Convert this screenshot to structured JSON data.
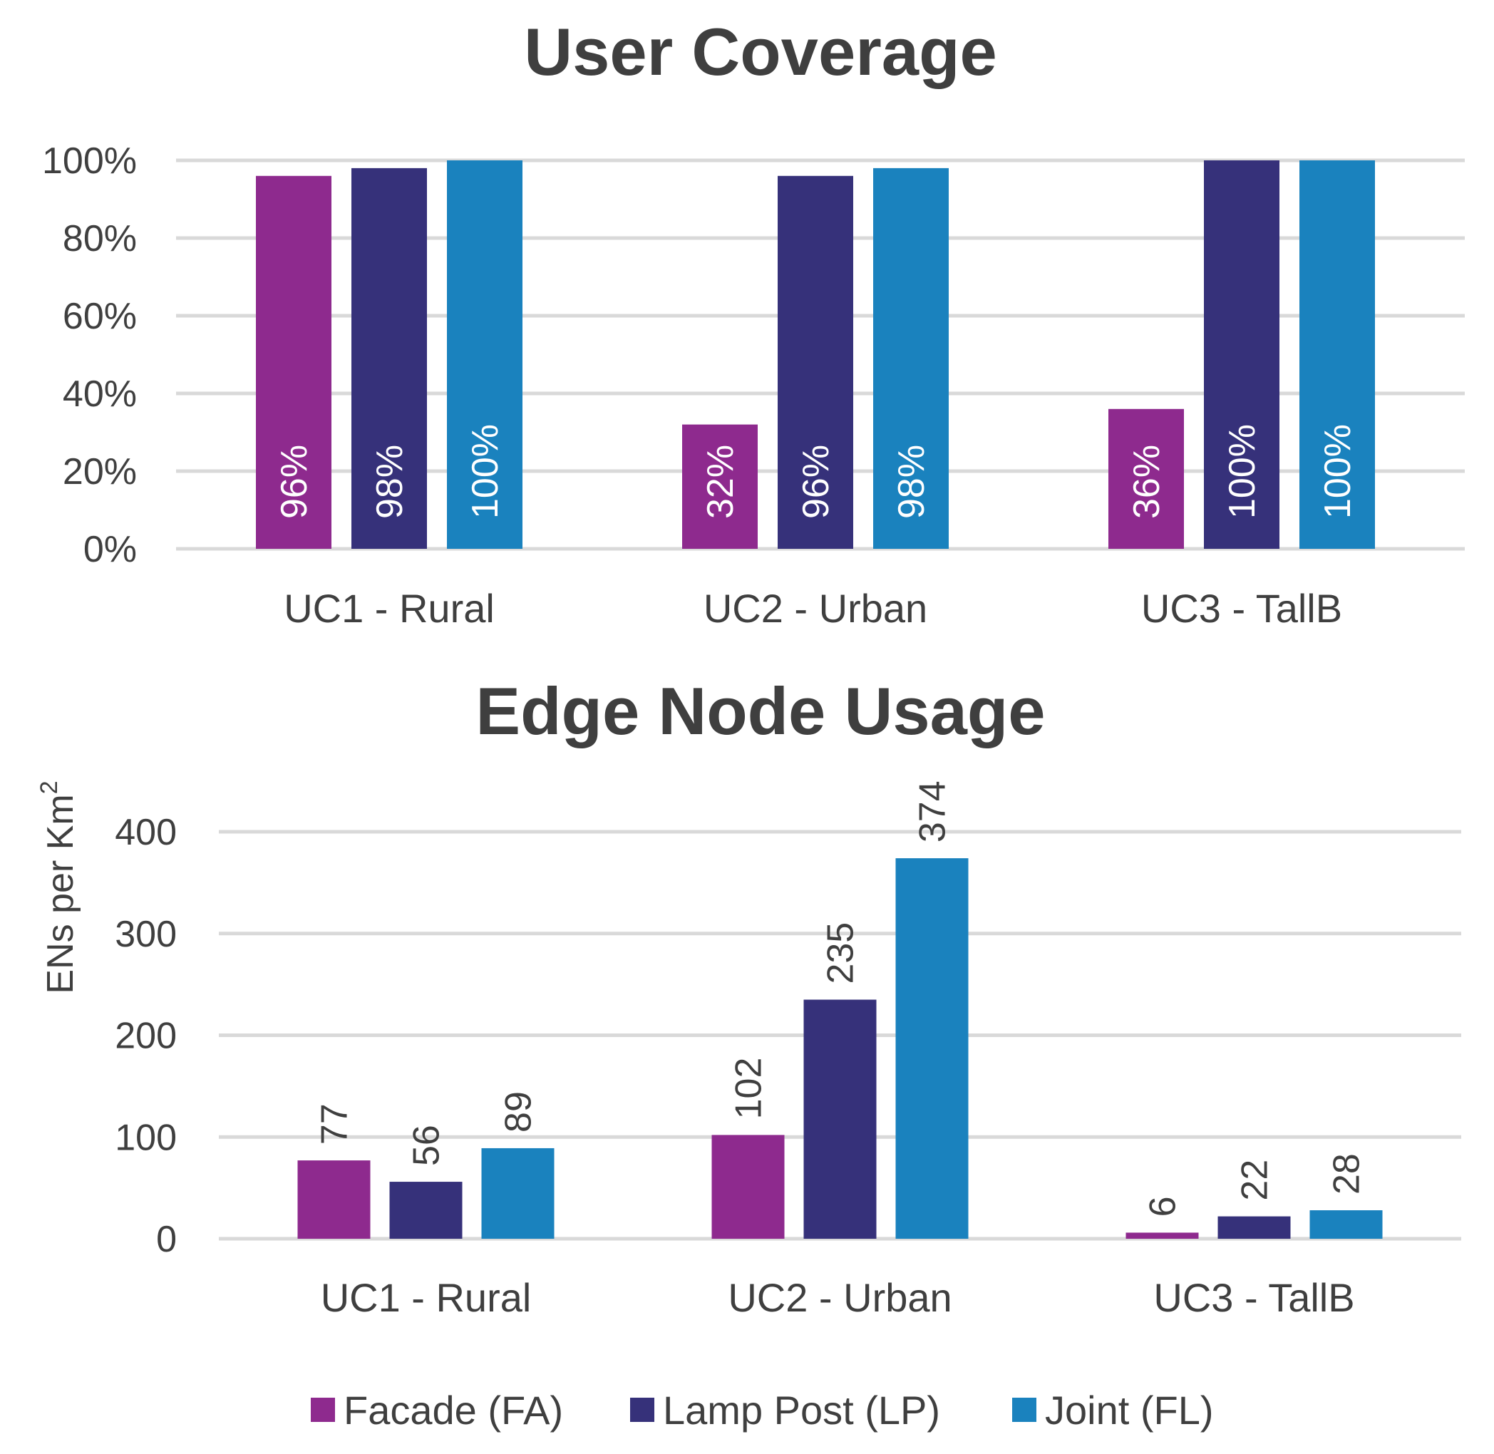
{
  "chart_data": [
    {
      "type": "bar",
      "title": "User Coverage",
      "xlabel": "",
      "ylabel": "",
      "categories": [
        "UC1 - Rural",
        "UC2 - Urban",
        "UC3 - TallB"
      ],
      "ylim": [
        0,
        100
      ],
      "yticks": [
        0,
        20,
        40,
        60,
        80,
        100
      ],
      "ytick_labels": [
        "0%",
        "20%",
        "40%",
        "60%",
        "80%",
        "100%"
      ],
      "grid": true,
      "series": [
        {
          "name": "Facade (FA)",
          "values": [
            96,
            32,
            36
          ],
          "labels": [
            "96%",
            "32%",
            "36%"
          ]
        },
        {
          "name": "Lamp Post (LP)",
          "values": [
            98,
            96,
            100
          ],
          "labels": [
            "98%",
            "96%",
            "100%"
          ]
        },
        {
          "name": "Joint (FL)",
          "values": [
            100,
            98,
            100
          ],
          "labels": [
            "100%",
            "98%",
            "100%"
          ]
        }
      ]
    },
    {
      "type": "bar",
      "title": "Edge Node Usage",
      "xlabel": "",
      "ylabel": "ENs per Km",
      "ylabel_superscript": "2",
      "categories": [
        "UC1 - Rural",
        "UC2 - Urban",
        "UC3 - TallB"
      ],
      "ylim": [
        0,
        400
      ],
      "yticks": [
        0,
        100,
        200,
        300,
        400
      ],
      "ytick_labels": [
        "0",
        "100",
        "200",
        "300",
        "400"
      ],
      "grid": true,
      "series": [
        {
          "name": "Facade (FA)",
          "values": [
            77,
            102,
            6
          ],
          "labels": [
            "77",
            "102",
            "6"
          ]
        },
        {
          "name": "Lamp Post (LP)",
          "values": [
            56,
            235,
            22
          ],
          "labels": [
            "56",
            "235",
            "22"
          ]
        },
        {
          "name": "Joint (FL)",
          "values": [
            89,
            374,
            28
          ],
          "labels": [
            "89",
            "374",
            "28"
          ]
        }
      ]
    }
  ],
  "legend": {
    "position": "bottom",
    "items": [
      {
        "label": "Facade (FA)",
        "color": "#8e2a8e"
      },
      {
        "label": "Lamp Post (LP)",
        "color": "#36317a"
      },
      {
        "label": "Joint (FL)",
        "color": "#1a82be"
      }
    ]
  },
  "colors": {
    "series": [
      "#8e2a8e",
      "#36317a",
      "#1a82be"
    ],
    "gridline": "#d9d9d9",
    "text": "#3f3f3f"
  }
}
